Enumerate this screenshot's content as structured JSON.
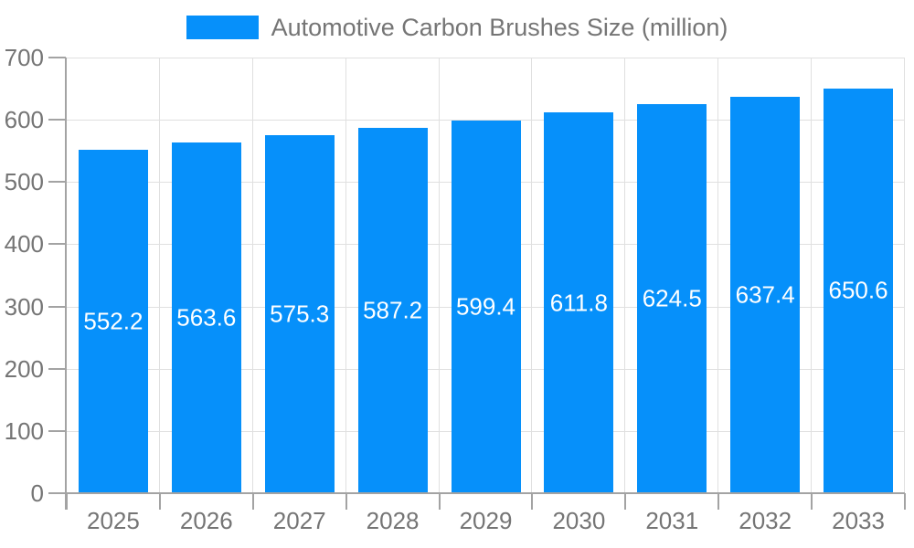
{
  "legend": {
    "label": "Automotive Carbon Brushes Size (million)"
  },
  "chart_data": {
    "type": "bar",
    "title": "Automotive Carbon Brushes Size (million)",
    "categories": [
      "2025",
      "2026",
      "2027",
      "2028",
      "2029",
      "2030",
      "2031",
      "2032",
      "2033"
    ],
    "values": [
      552.2,
      563.6,
      575.3,
      587.2,
      599.4,
      611.8,
      624.5,
      637.4,
      650.6
    ],
    "value_labels": [
      "552.2",
      "563.6",
      "575.3",
      "587.2",
      "599.4",
      "611.8",
      "624.5",
      "637.4",
      "650.6"
    ],
    "xlabel": "",
    "ylabel": "",
    "ylim": [
      0,
      700
    ],
    "yticks": [
      0,
      100,
      200,
      300,
      400,
      500,
      600,
      700
    ],
    "grid": true,
    "legend_position": "top-center",
    "colors": {
      "bar": "#0690fa",
      "value_label": "#ffffff",
      "axis_text": "#757575",
      "grid_line": "#e0e0e0",
      "axis_line": "#a3a3a3"
    }
  }
}
